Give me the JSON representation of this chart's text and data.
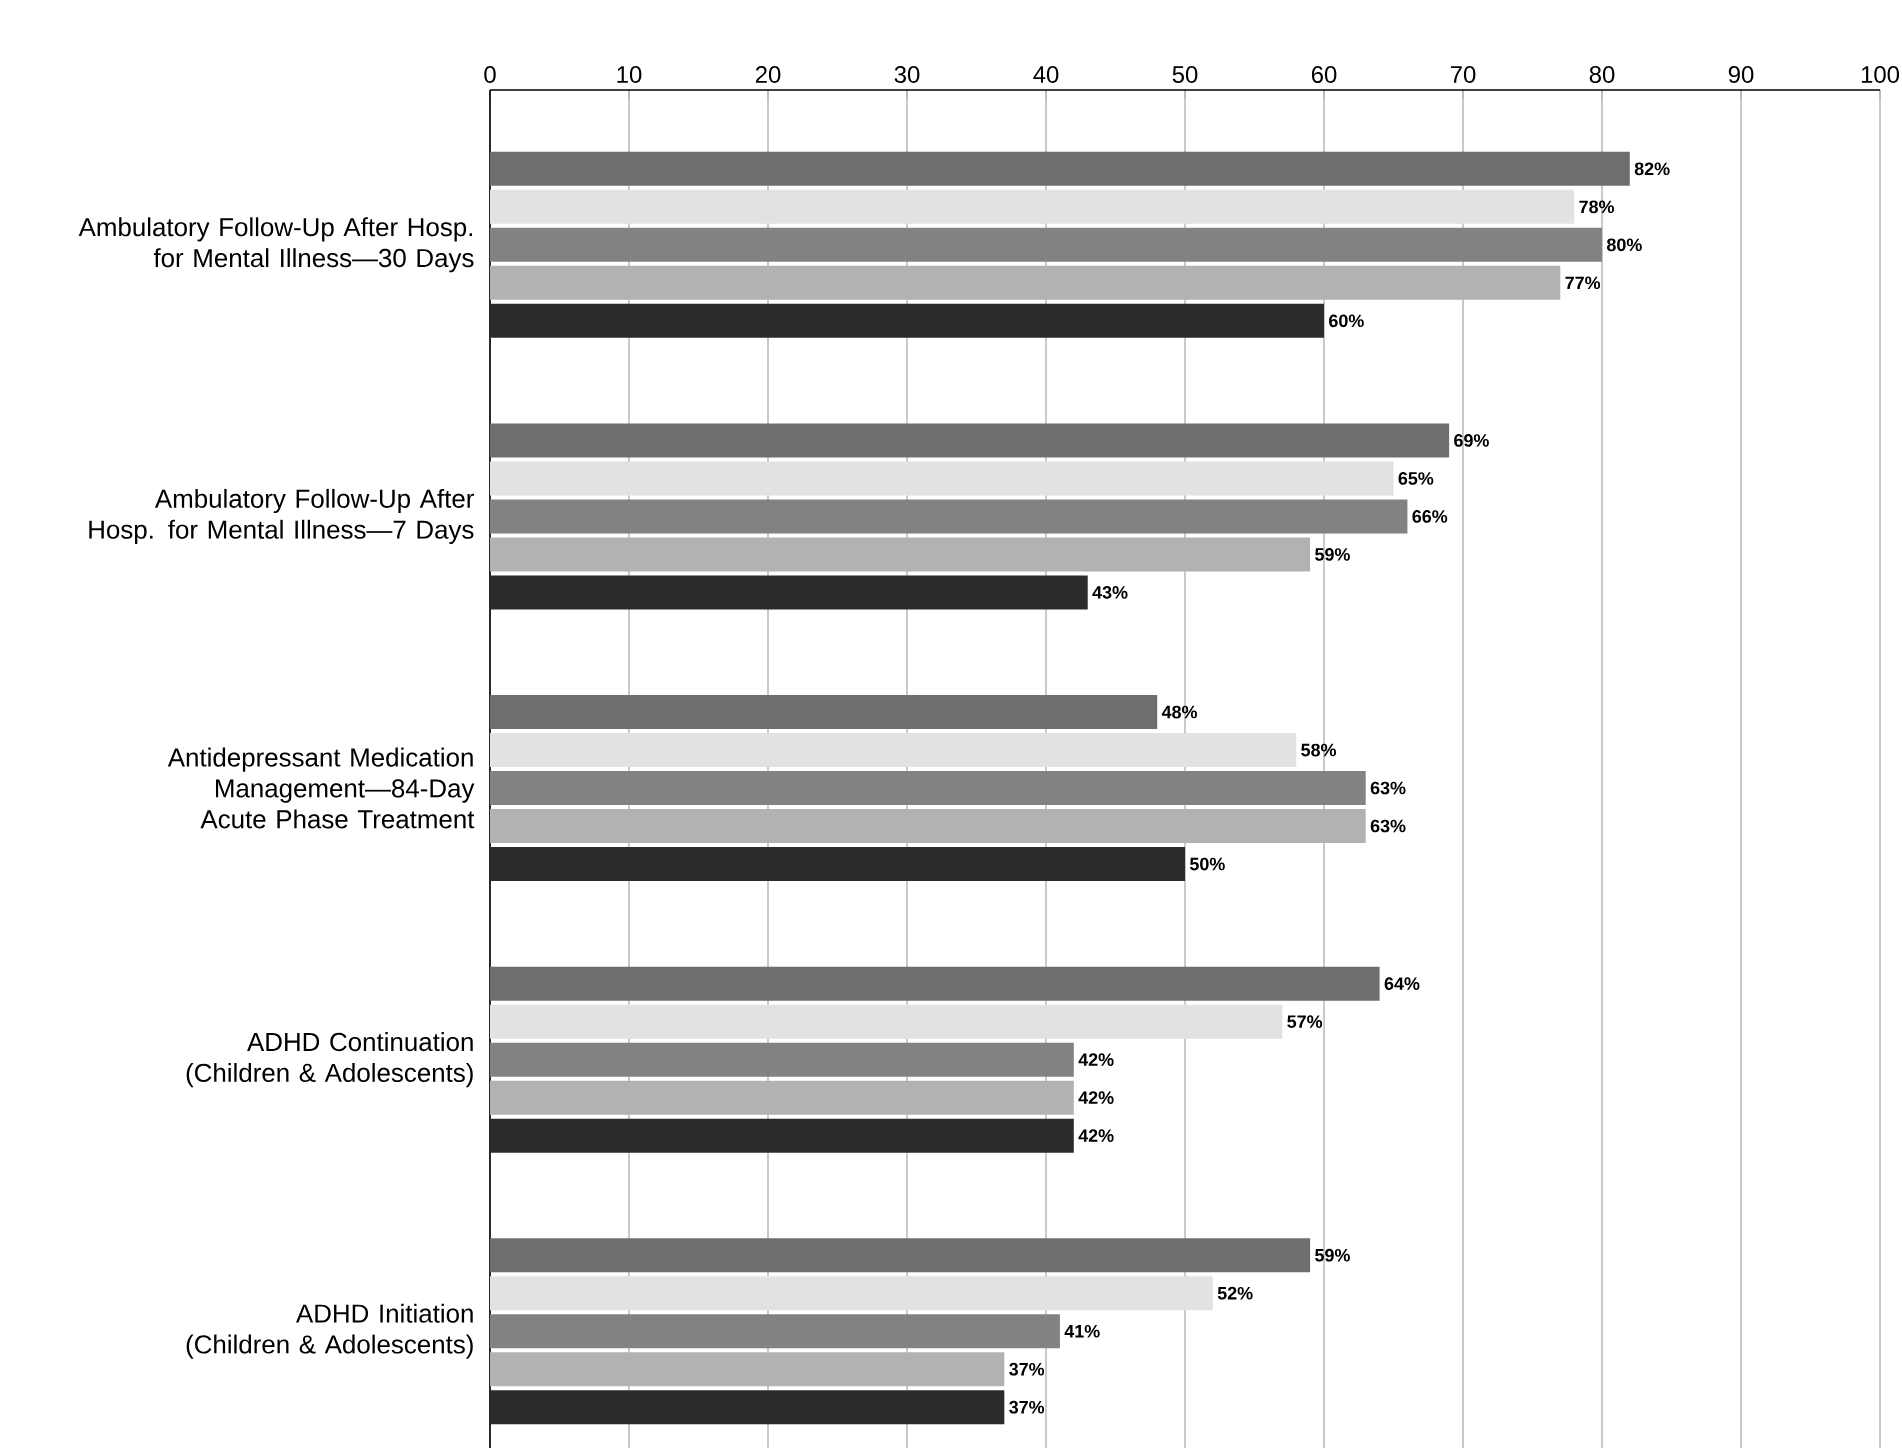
{
  "chart_data": {
    "type": "bar",
    "orientation": "horizontal",
    "categories": [
      "Ambulatory Follow-Up After Hosp. for Mental Illness—30 Days",
      "Ambulatory Follow-Up After Hosp. for Mental Illness—7 Days",
      "Antidepressant Medication Management—84-Day Acute Phase Treatment",
      "ADHD Continuation (Children & Adolescents)",
      "ADHD Initiation (Children & Adolescents)"
    ],
    "series": [
      {
        "color": "#6e6e6e",
        "values": [
          82,
          69,
          48,
          64,
          59
        ],
        "value_labels": [
          "82%",
          "69%",
          "48%",
          "64%",
          "59%"
        ]
      },
      {
        "color": "#e2e2e2",
        "values": [
          78,
          65,
          58,
          57,
          52
        ],
        "value_labels": [
          "78%",
          "65%",
          "58%",
          "57%",
          "52%"
        ]
      },
      {
        "color": "#828282",
        "values": [
          80,
          66,
          63,
          42,
          41
        ],
        "value_labels": [
          "80%",
          "66%",
          "63%",
          "42%",
          "41%"
        ]
      },
      {
        "color": "#b2b2b2",
        "values": [
          77,
          59,
          63,
          42,
          37
        ],
        "value_labels": [
          "77%",
          "59%",
          "63%",
          "42%",
          "37%"
        ]
      },
      {
        "color": "#2b2b2b",
        "values": [
          60,
          43,
          50,
          42,
          37
        ],
        "value_labels": [
          "60%",
          "43%",
          "50%",
          "42%",
          "37%"
        ]
      }
    ],
    "xlim": [
      0,
      100
    ],
    "xticks": [
      0,
      10,
      20,
      30,
      40,
      50,
      60,
      70,
      80,
      90,
      100
    ],
    "grid": "x"
  }
}
